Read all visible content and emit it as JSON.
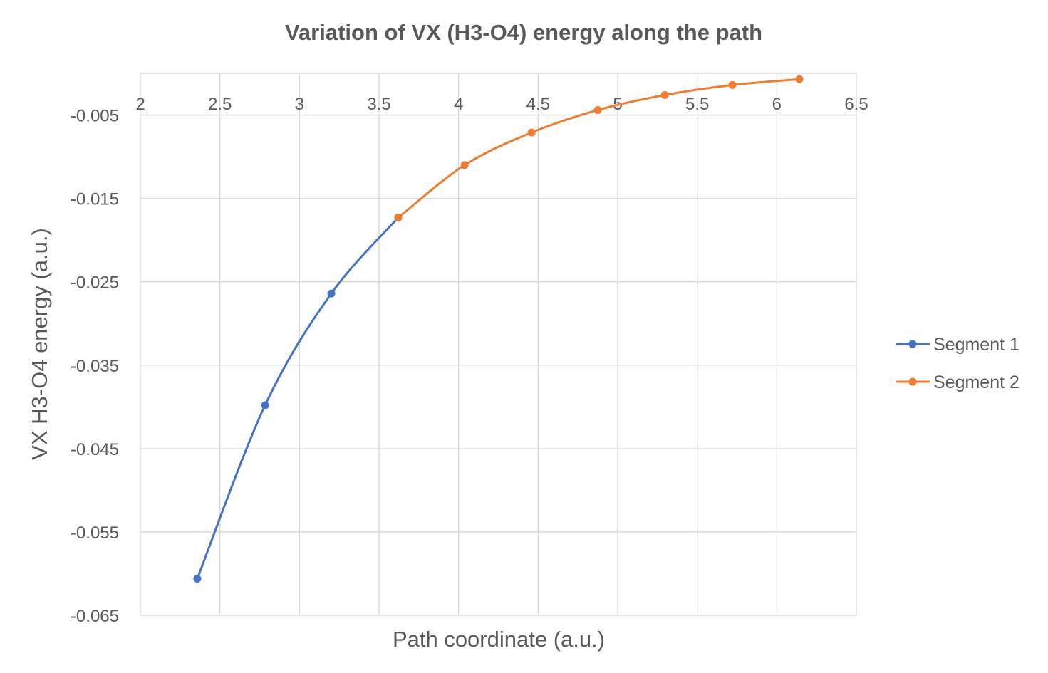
{
  "chart_data": {
    "type": "line",
    "title": "Variation of  VX (H3-O4) energy along the path",
    "xlabel": "Path coordinate (a.u.)",
    "ylabel": "VX  H3-O4  energy (a.u.)",
    "xlim": [
      2,
      6.5
    ],
    "ylim": [
      -0.065,
      0
    ],
    "x_ticks": [
      "2",
      "2.5",
      "3",
      "3.5",
      "4",
      "4.5",
      "5",
      "5.5",
      "6",
      "6.5"
    ],
    "y_ticks": [
      "-0.005",
      "-0.015",
      "-0.025",
      "-0.035",
      "-0.045",
      "-0.055",
      "-0.065"
    ],
    "grid": true,
    "legend_position": "right",
    "series": [
      {
        "name": "Segment 1",
        "color": "#4472C4",
        "x": [
          2.358,
          2.784,
          3.2,
          3.621
        ],
        "y": [
          -0.0606,
          -0.0398,
          -0.0264,
          -0.0173
        ]
      },
      {
        "name": "Segment 2",
        "color": "#ED7D31",
        "x": [
          3.621,
          4.038,
          4.459,
          4.875,
          5.296,
          5.721,
          6.142
        ],
        "y": [
          -0.0173,
          -0.011,
          -0.0071,
          -0.0044,
          -0.0026,
          -0.0014,
          -0.0007
        ]
      }
    ]
  }
}
